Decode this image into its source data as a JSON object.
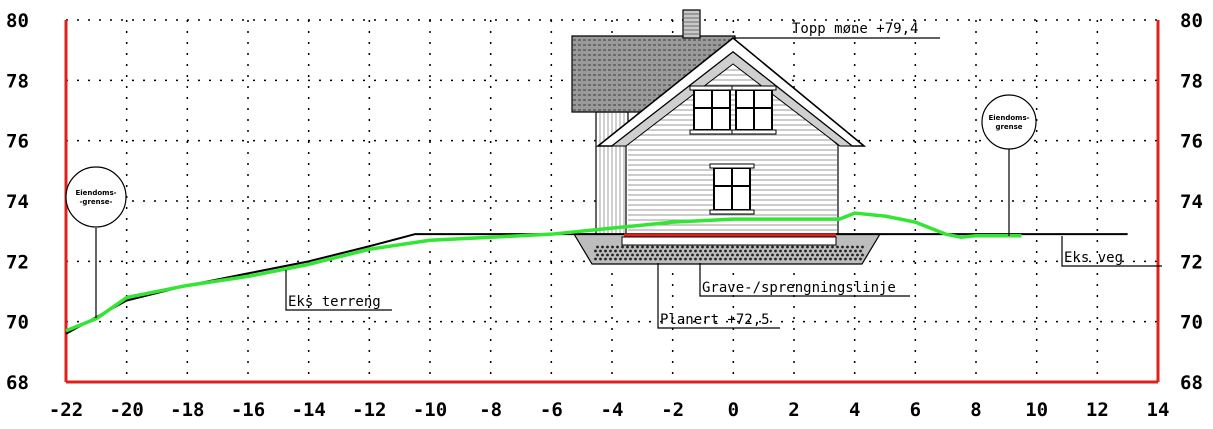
{
  "diagram": {
    "labels": {
      "ridge": "Topp møne +79,4",
      "ground": "Eks terreng",
      "road": "Eks veg",
      "excavation": "Grave-/sprengningslinje",
      "formation": "Planert +72,5",
      "boundary_left_1": "Eiendoms-",
      "boundary_left_2": "-grense-",
      "boundary_right_1": "Eiendoms-",
      "boundary_right_2": "grense"
    },
    "colors": {
      "frame": "#e0201b",
      "proposed_terrain": "#33e633",
      "existing_terrain": "#000000",
      "formation_line": "#e0201b",
      "grid": "#000000"
    }
  },
  "chart_data": {
    "type": "line",
    "xlim": [
      -22,
      14
    ],
    "ylim": [
      68,
      80
    ],
    "x_ticks": [
      "-22",
      "-20",
      "-18",
      "-16",
      "-14",
      "-12",
      "-10",
      "-8",
      "-6",
      "-4",
      "-2",
      "0",
      "2",
      "4",
      "6",
      "8",
      "10",
      "12",
      "14"
    ],
    "y_ticks_left": [
      "80",
      "78",
      "76",
      "74",
      "72",
      "70",
      "68"
    ],
    "y_ticks_right": [
      "80",
      "78",
      "76",
      "74",
      "72",
      "70",
      "68"
    ],
    "series": [
      {
        "x": [
          -22,
          -20,
          -18,
          -16,
          -14,
          -12,
          -10.5,
          -8,
          -6,
          -4,
          0,
          4,
          9.5,
          13
        ],
        "y": [
          69.6,
          70.7,
          71.2,
          71.6,
          72.0,
          72.5,
          72.9,
          72.9,
          72.9,
          72.9,
          72.9,
          72.9,
          72.9,
          72.9
        ],
        "color": "#000000"
      },
      {
        "x": [
          -22,
          -21,
          -20,
          -18,
          -16,
          -14,
          -12,
          -10,
          -8,
          -6,
          -4,
          -2,
          0,
          2,
          3.5,
          4,
          5,
          6,
          7,
          7.5,
          8,
          9,
          9.5
        ],
        "y": [
          69.7,
          70.1,
          70.8,
          71.2,
          71.5,
          71.9,
          72.4,
          72.7,
          72.8,
          72.9,
          73.1,
          73.3,
          73.4,
          73.4,
          73.4,
          73.6,
          73.5,
          73.3,
          72.9,
          72.8,
          72.85,
          72.85,
          72.85
        ],
        "color": "#33e633"
      }
    ]
  }
}
